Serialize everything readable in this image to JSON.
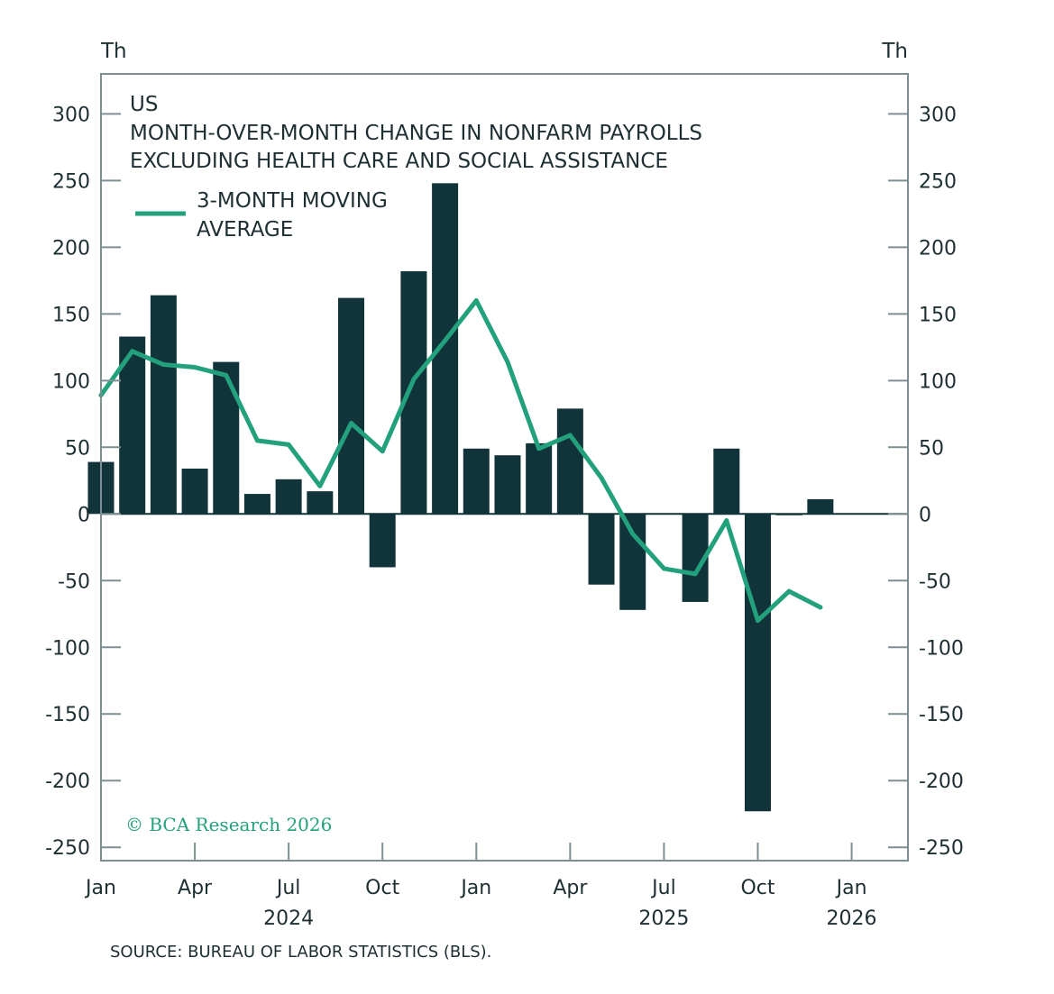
{
  "chart_data": {
    "type": "bar",
    "unit_left": "Th",
    "unit_right": "Th",
    "title_lines": [
      "US",
      "MONTH-OVER-MONTH CHANGE IN NONFARM PAYROLLS",
      "EXCLUDING HEALTH CARE AND SOCIAL ASSISTANCE"
    ],
    "legend": {
      "entry_lines": [
        "3-MONTH MOVING",
        "AVERAGE"
      ],
      "position": "top-left"
    },
    "ylim": [
      -260,
      330
    ],
    "yticks": [
      -250,
      -200,
      -150,
      -100,
      -50,
      0,
      50,
      100,
      150,
      200,
      250,
      300
    ],
    "xlim": [
      0,
      25.8
    ],
    "x_tick_labels": [
      {
        "x": 0,
        "label": "Jan",
        "year": ""
      },
      {
        "x": 3,
        "label": "Apr",
        "year": ""
      },
      {
        "x": 6,
        "label": "Jul",
        "year": "2024"
      },
      {
        "x": 9,
        "label": "Oct",
        "year": ""
      },
      {
        "x": 12,
        "label": "Jan",
        "year": ""
      },
      {
        "x": 15,
        "label": "Apr",
        "year": ""
      },
      {
        "x": 18,
        "label": "Jul",
        "year": "2025"
      },
      {
        "x": 21,
        "label": "Oct",
        "year": ""
      },
      {
        "x": 24,
        "label": "Jan",
        "year": "2026"
      }
    ],
    "bars": {
      "dates": [
        "2024-01",
        "2024-02",
        "2024-03",
        "2024-04",
        "2024-05",
        "2024-06",
        "2024-07",
        "2024-08",
        "2024-09",
        "2024-10",
        "2024-11",
        "2024-12",
        "2025-01",
        "2025-02",
        "2025-03",
        "2025-04",
        "2025-05",
        "2025-06",
        "2025-07",
        "2025-08",
        "2025-09",
        "2025-10",
        "2025-11",
        "2025-12"
      ],
      "values": [
        39,
        133,
        164,
        34,
        114,
        15,
        26,
        17,
        162,
        -40,
        182,
        248,
        49,
        44,
        53,
        79,
        -53,
        -72,
        0,
        -66,
        49,
        -223,
        -1,
        11
      ],
      "color": "#11343a"
    },
    "moving_average": {
      "name": "3-MONTH MOVING AVERAGE",
      "dates": [
        "2024-01",
        "2024-02",
        "2024-03",
        "2024-04",
        "2024-05",
        "2024-06",
        "2024-07",
        "2024-08",
        "2024-09",
        "2024-10",
        "2024-11",
        "2024-12",
        "2025-01",
        "2025-02",
        "2025-03",
        "2025-04",
        "2025-05",
        "2025-06",
        "2025-07",
        "2025-08",
        "2025-09",
        "2025-10",
        "2025-11",
        "2025-12"
      ],
      "values": [
        89,
        122,
        112,
        110,
        104,
        55,
        52,
        21,
        68,
        47,
        101,
        130,
        160,
        114,
        49,
        59,
        27,
        -15,
        -41,
        -45,
        -5,
        -80,
        -58,
        -70
      ],
      "color": "#23a07c"
    },
    "copyright": "© BCA Research 2026",
    "source": "SOURCE: BUREAU OF LABOR STATISTICS (BLS)."
  }
}
